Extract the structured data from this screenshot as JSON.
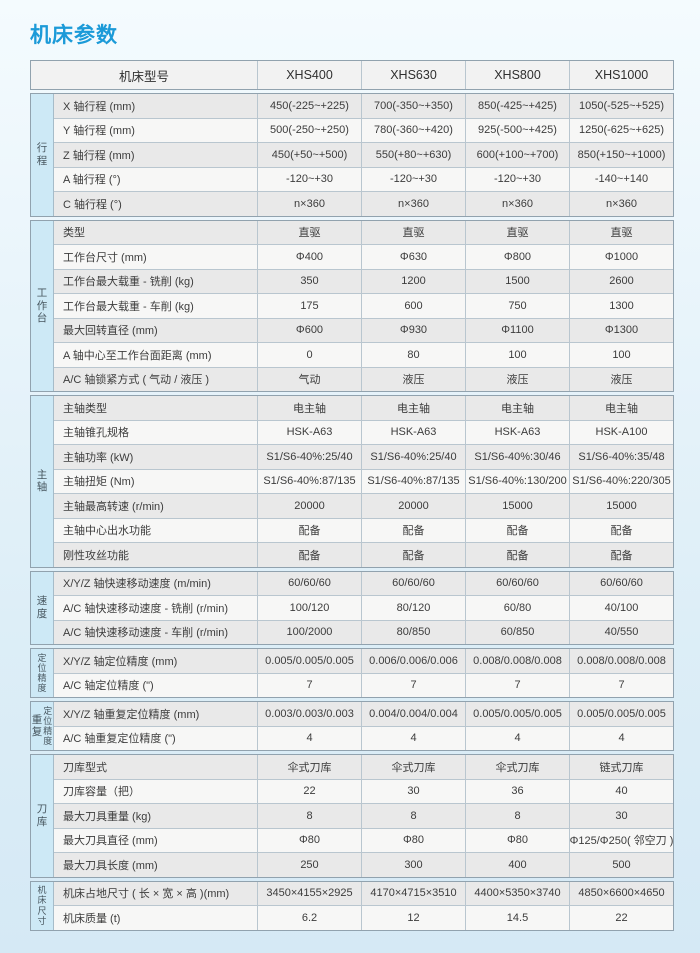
{
  "title": "机床参数",
  "colors": {
    "accent": "#1b9ad8",
    "page_bg_top": "#f4fbfe",
    "page_bg_bottom": "#d5e9f5",
    "group_label_bg": "#cde9f6",
    "stripe_dark": "#e9e9e9",
    "stripe_light": "#f7f7f6",
    "header_bg": "#f2f2f2",
    "border": "#91a2ae"
  },
  "table": {
    "header": {
      "model_label": "机床型号",
      "models": [
        "XHS400",
        "XHS630",
        "XHS800",
        "XHS1000"
      ]
    },
    "groups": [
      {
        "label": "行程",
        "label_cols": [
          "行程"
        ],
        "rows": [
          {
            "param": "X 轴行程 (mm)",
            "values": [
              "450(-225~+225)",
              "700(-350~+350)",
              "850(-425~+425)",
              "1050(-525~+525)"
            ]
          },
          {
            "param": "Y 轴行程 (mm)",
            "values": [
              "500(-250~+250)",
              "780(-360~+420)",
              "925(-500~+425)",
              "1250(-625~+625)"
            ]
          },
          {
            "param": "Z 轴行程 (mm)",
            "values": [
              "450(+50~+500)",
              "550(+80~+630)",
              "600(+100~+700)",
              "850(+150~+1000)"
            ]
          },
          {
            "param": "A 轴行程 (°)",
            "values": [
              "-120~+30",
              "-120~+30",
              "-120~+30",
              "-140~+140"
            ]
          },
          {
            "param": "C 轴行程 (°)",
            "values": [
              "n×360",
              "n×360",
              "n×360",
              "n×360"
            ]
          }
        ]
      },
      {
        "label": "工作台",
        "label_cols": [
          "工作台"
        ],
        "rows": [
          {
            "param": "类型",
            "values": [
              "直驱",
              "直驱",
              "直驱",
              "直驱"
            ]
          },
          {
            "param": "工作台尺寸 (mm)",
            "values": [
              "Φ400",
              "Φ630",
              "Φ800",
              "Φ1000"
            ]
          },
          {
            "param": "工作台最大载重 - 铣削 (kg)",
            "values": [
              "350",
              "1200",
              "1500",
              "2600"
            ]
          },
          {
            "param": "工作台最大载重 - 车削 (kg)",
            "values": [
              "175",
              "600",
              "750",
              "1300"
            ]
          },
          {
            "param": "最大回转直径 (mm)",
            "values": [
              "Φ600",
              "Φ930",
              "Φ1100",
              "Φ1300"
            ]
          },
          {
            "param": "A 轴中心至工作台面距离 (mm)",
            "values": [
              "0",
              "80",
              "100",
              "100"
            ]
          },
          {
            "param": "A/C 轴锁紧方式 ( 气动 / 液压 )",
            "values": [
              "气动",
              "液压",
              "液压",
              "液压"
            ]
          }
        ]
      },
      {
        "label": "主轴",
        "label_cols": [
          "主轴"
        ],
        "rows": [
          {
            "param": "主轴类型",
            "values": [
              "电主轴",
              "电主轴",
              "电主轴",
              "电主轴"
            ]
          },
          {
            "param": "主轴锥孔规格",
            "values": [
              "HSK-A63",
              "HSK-A63",
              "HSK-A63",
              "HSK-A100"
            ]
          },
          {
            "param": "主轴功率 (kW)",
            "values": [
              "S1/S6-40%:25/40",
              "S1/S6-40%:25/40",
              "S1/S6-40%:30/46",
              "S1/S6-40%:35/48"
            ]
          },
          {
            "param": "主轴扭矩 (Nm)",
            "values": [
              "S1/S6-40%:87/135",
              "S1/S6-40%:87/135",
              "S1/S6-40%:130/200",
              "S1/S6-40%:220/305"
            ]
          },
          {
            "param": "主轴最高转速 (r/min)",
            "values": [
              "20000",
              "20000",
              "15000",
              "15000"
            ]
          },
          {
            "param": "主轴中心出水功能",
            "values": [
              "配备",
              "配备",
              "配备",
              "配备"
            ]
          },
          {
            "param": "刚性攻丝功能",
            "values": [
              "配备",
              "配备",
              "配备",
              "配备"
            ]
          }
        ]
      },
      {
        "label": "速度",
        "label_cols": [
          "速度"
        ],
        "rows": [
          {
            "param": "X/Y/Z 轴快速移动速度 (m/min)",
            "values": [
              "60/60/60",
              "60/60/60",
              "60/60/60",
              "60/60/60"
            ]
          },
          {
            "param": "A/C 轴快速移动速度 - 铣削 (r/min)",
            "values": [
              "100/120",
              "80/120",
              "60/80",
              "40/100"
            ]
          },
          {
            "param": "A/C 轴快速移动速度 - 车削 (r/min)",
            "values": [
              "100/2000",
              "80/850",
              "60/850",
              "40/550"
            ]
          }
        ]
      },
      {
        "label": "定位精度",
        "label_cols": [
          "定位精度"
        ],
        "rows": [
          {
            "param": "X/Y/Z 轴定位精度 (mm)",
            "values": [
              "0.005/0.005/0.005",
              "0.006/0.006/0.006",
              "0.008/0.008/0.008",
              "0.008/0.008/0.008"
            ]
          },
          {
            "param": "A/C 轴定位精度 (\")",
            "values": [
              "7",
              "7",
              "7",
              "7"
            ]
          }
        ]
      },
      {
        "label": "重复定位精度",
        "label_cols": [
          "重复",
          "定位精度"
        ],
        "rows": [
          {
            "param": "X/Y/Z 轴重复定位精度 (mm)",
            "values": [
              "0.003/0.003/0.003",
              "0.004/0.004/0.004",
              "0.005/0.005/0.005",
              "0.005/0.005/0.005"
            ]
          },
          {
            "param": "A/C 轴重复定位精度 (\")",
            "values": [
              "4",
              "4",
              "4",
              "4"
            ]
          }
        ]
      },
      {
        "label": "刀库",
        "label_cols": [
          "刀库"
        ],
        "rows": [
          {
            "param": "刀库型式",
            "values": [
              "伞式刀库",
              "伞式刀库",
              "伞式刀库",
              "链式刀库"
            ]
          },
          {
            "param": "刀库容量（把）",
            "values": [
              "22",
              "30",
              "36",
              "40"
            ]
          },
          {
            "param": "最大刀具重量 (kg)",
            "values": [
              "8",
              "8",
              "8",
              "30"
            ]
          },
          {
            "param": "最大刀具直径 (mm)",
            "values": [
              "Φ80",
              "Φ80",
              "Φ80",
              "Φ125/Φ250( 邻空刀 )"
            ]
          },
          {
            "param": "最大刀具长度 (mm)",
            "values": [
              "250",
              "300",
              "400",
              "500"
            ]
          }
        ]
      },
      {
        "label": "机床尺寸",
        "label_cols": [
          "机床尺寸"
        ],
        "rows": [
          {
            "param": "机床占地尺寸 ( 长 × 宽 × 高 )(mm)",
            "values": [
              "3450×4155×2925",
              "4170×4715×3510",
              "4400×5350×3740",
              "4850×6600×4650"
            ]
          },
          {
            "param": "机床质量 (t)",
            "values": [
              "6.2",
              "12",
              "14.5",
              "22"
            ]
          }
        ]
      }
    ]
  }
}
